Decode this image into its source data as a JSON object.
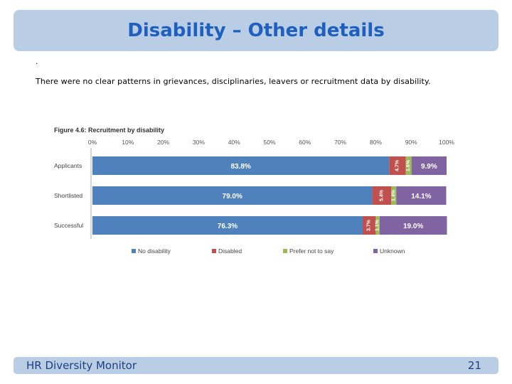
{
  "slide": {
    "title": "Disability – Other details",
    "bullet": ".",
    "body": "There were no clear patterns in grievances, disciplinaries, leavers or recruitment data by disability."
  },
  "footer": {
    "left": "HR Diversity Monitor",
    "page_number": "21"
  },
  "colors": {
    "title": "#1f5fbf",
    "bar_bg": "#b9cde4",
    "no_disability": "#4f81bd",
    "disabled": "#c0504d",
    "prefer_not": "#9bbb59",
    "unknown": "#8064a2"
  },
  "chart_data": {
    "type": "bar",
    "orientation": "horizontal",
    "stacked": true,
    "title": "Figure 4.6: Recruitment by disability",
    "categories": [
      "Applicants",
      "Shortlisted",
      "Successful"
    ],
    "xticks": [
      "0%",
      "10%",
      "20%",
      "30%",
      "40%",
      "50%",
      "60%",
      "70%",
      "80%",
      "90%",
      "100%"
    ],
    "xlim": [
      0,
      100
    ],
    "legend_position": "bottom",
    "series": [
      {
        "name": "No disability",
        "values": [
          83.8,
          79.0,
          76.3
        ],
        "labels": [
          "83.8%",
          "79.0%",
          "76.3%"
        ]
      },
      {
        "name": "Disabled",
        "values": [
          4.7,
          5.4,
          3.7
        ],
        "labels": [
          "4.7%",
          "5.4%",
          "3.7%"
        ]
      },
      {
        "name": "Prefer not to say",
        "values": [
          1.6,
          1.4,
          1.1
        ],
        "labels": [
          "1.6%",
          "1.4%",
          "1.1%"
        ]
      },
      {
        "name": "Unknown",
        "values": [
          9.9,
          14.1,
          19.0
        ],
        "labels": [
          "9.9%",
          "14.1%",
          "19.0%"
        ]
      }
    ]
  }
}
